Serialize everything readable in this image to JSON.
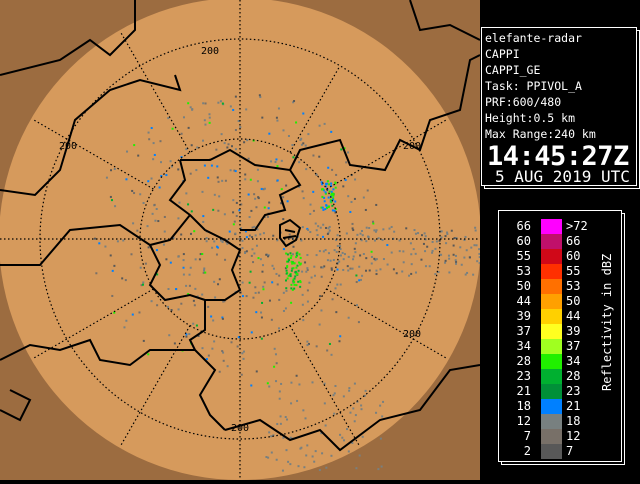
{
  "map": {
    "range_ring_label": "200",
    "colors": {
      "outside": "#9c6c40",
      "coverage": "#d69a5c",
      "border": "#000000"
    }
  },
  "info": {
    "lines": [
      "elefante-radar",
      "CAPPI",
      "CAPPI_GE",
      "Task: PPIVOL_A",
      "PRF:600/480",
      "Height:0.5 km",
      "Max Range:240 km"
    ],
    "time": "14:45:27Z",
    "date": "5 AUG 2019 UTC"
  },
  "legend": {
    "unit": "Reflectivity in dBZ",
    "rows": [
      {
        "lo": "66",
        "hi": ">72",
        "color": "#ff00ff"
      },
      {
        "lo": "60",
        "hi": "66",
        "color": "#c0106a"
      },
      {
        "lo": "55",
        "hi": "60",
        "color": "#d00818"
      },
      {
        "lo": "53",
        "hi": "55",
        "color": "#ff3000"
      },
      {
        "lo": "50",
        "hi": "53",
        "color": "#ff7000"
      },
      {
        "lo": "44",
        "hi": "50",
        "color": "#ffa000"
      },
      {
        "lo": "39",
        "hi": "44",
        "color": "#ffd000"
      },
      {
        "lo": "37",
        "hi": "39",
        "color": "#ffff20"
      },
      {
        "lo": "34",
        "hi": "37",
        "color": "#a0ff20"
      },
      {
        "lo": "28",
        "hi": "34",
        "color": "#20f000"
      },
      {
        "lo": "23",
        "hi": "28",
        "color": "#00b030"
      },
      {
        "lo": "21",
        "hi": "23",
        "color": "#009038"
      },
      {
        "lo": "18",
        "hi": "21",
        "color": "#0080ff"
      },
      {
        "lo": "12",
        "hi": "18",
        "color": "#788080"
      },
      {
        "lo": "7",
        "hi": "12",
        "color": "#787068"
      },
      {
        "lo": "2",
        "hi": "7",
        "color": "#585858"
      }
    ]
  }
}
